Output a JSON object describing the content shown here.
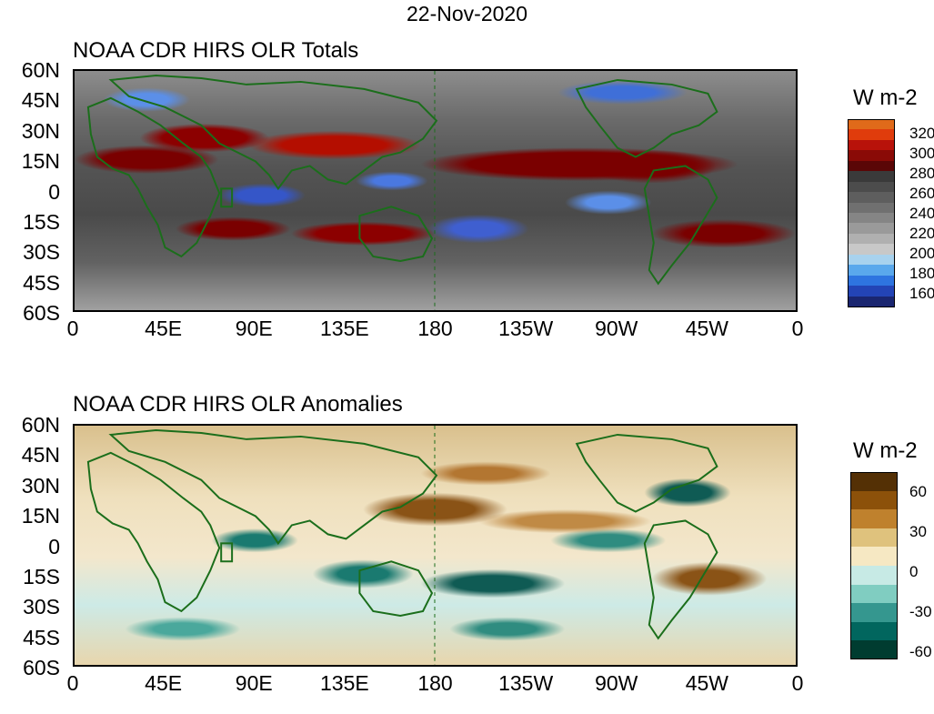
{
  "date": "22-Nov-2020",
  "panels": [
    {
      "title": "NOAA CDR HIRS OLR Totals",
      "lat_labels": [
        "60N",
        "45N",
        "30N",
        "15N",
        "0",
        "15S",
        "30S",
        "45S",
        "60S"
      ],
      "lon_labels": [
        "0",
        "45E",
        "90E",
        "135E",
        "180",
        "135W",
        "90W",
        "45W",
        "0"
      ],
      "colorbar": {
        "unit": "W m-2",
        "labels": [
          "320",
          "300",
          "280",
          "260",
          "240",
          "220",
          "200",
          "180",
          "160"
        ],
        "colors": [
          "#e06a1a",
          "#e03c0c",
          "#b8120a",
          "#8a0a06",
          "#5a0606",
          "#3a3a3a",
          "#4c4c4c",
          "#5e5e5e",
          "#707070",
          "#858585",
          "#9a9a9a",
          "#b0b0b0",
          "#c8c8c8",
          "#a8d2ee",
          "#5aa8ec",
          "#2e74e0",
          "#2344b6",
          "#1a2670"
        ]
      }
    },
    {
      "title": "NOAA CDR HIRS OLR Anomalies",
      "lat_labels": [
        "60N",
        "45N",
        "30N",
        "15N",
        "0",
        "15S",
        "30S",
        "45S",
        "60S"
      ],
      "lon_labels": [
        "0",
        "45E",
        "90E",
        "135E",
        "180",
        "135W",
        "90W",
        "45W",
        "0"
      ],
      "colorbar": {
        "unit": "W m-2",
        "labels": [
          "60",
          "30",
          "0",
          "-30",
          "-60"
        ],
        "colors": [
          "#543005",
          "#8c510a",
          "#bf812d",
          "#dfc27d",
          "#f6e8c3",
          "#c7eae5",
          "#80cdc1",
          "#35978f",
          "#01665e",
          "#003c30"
        ]
      }
    }
  ]
}
